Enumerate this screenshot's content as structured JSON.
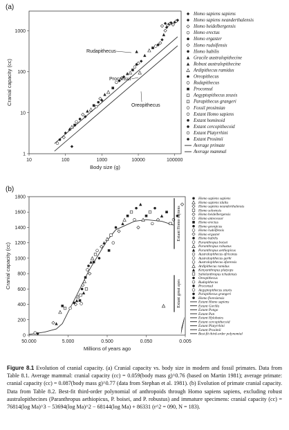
{
  "chart_data": [
    {
      "type": "scatter",
      "panel": "(a)",
      "xlabel": "Body size (g)",
      "ylabel": "Cranial capacity (cc)",
      "x_scale": "log",
      "y_scale": "log",
      "xlim": [
        10,
        150000
      ],
      "ylim": [
        1,
        3000
      ],
      "xticks": [
        10,
        100,
        1000,
        10000,
        100000
      ],
      "xtick_labels": [
        "10",
        "100",
        "1000",
        "10000",
        "100000"
      ],
      "yticks": [
        1,
        10,
        100,
        1000
      ],
      "ytick_labels": [
        "1",
        "10",
        "100",
        "1000"
      ],
      "annotations": [
        "Rudapithecus",
        "Proconsul",
        "Oreopithecus"
      ],
      "legend_position": "right",
      "legend": [
        "Homo sapiens sapiens",
        "Homo sapiens neanderthalensis",
        "Homo heidelbergensis",
        "Homo erectus",
        "Homo ergaster",
        "Homo rudolfensis",
        "Homo habilis",
        "Gracile australopithecine",
        "Robust australopithecine",
        "Ardipithecus ramidus",
        "Oreopithecus",
        "Rudapithecus",
        "Proconsul",
        "Aegyptopithecus zeuxis",
        "Parapithecus grangeri",
        "Fossil prosimian",
        "Extant Homo sapiens",
        "Extant hominoid",
        "Extant cercopithecoid",
        "Extant Platyrrhini",
        "Extant Prosimii",
        "Average primate",
        "Average mammal"
      ],
      "lines": [
        {
          "name": "Average primate",
          "formula": "cc = 0.087 * g^0.77",
          "x": [
            50,
            120000
          ]
        },
        {
          "name": "Average mammal",
          "formula": "cc = 0.059 * g^0.76",
          "x": [
            50,
            120000
          ]
        }
      ],
      "points": [
        [
          60,
          1.8
        ],
        [
          70,
          2.2
        ],
        [
          90,
          2.5
        ],
        [
          100,
          3.2
        ],
        [
          130,
          4
        ],
        [
          150,
          4.5
        ],
        [
          180,
          5
        ],
        [
          200,
          6
        ],
        [
          250,
          7
        ],
        [
          300,
          9
        ],
        [
          350,
          8
        ],
        [
          400,
          11
        ],
        [
          500,
          12
        ],
        [
          600,
          15
        ],
        [
          700,
          14
        ],
        [
          800,
          18
        ],
        [
          900,
          22
        ],
        [
          1000,
          20
        ],
        [
          1200,
          28
        ],
        [
          1500,
          32
        ],
        [
          2000,
          40
        ],
        [
          2500,
          55
        ],
        [
          3000,
          60
        ],
        [
          3500,
          70
        ],
        [
          4000,
          75
        ],
        [
          5000,
          90
        ],
        [
          6000,
          95
        ],
        [
          7000,
          110
        ],
        [
          8000,
          130
        ],
        [
          9000,
          150
        ],
        [
          10000,
          160
        ],
        [
          12000,
          180
        ],
        [
          15000,
          250
        ],
        [
          20000,
          330
        ],
        [
          25000,
          380
        ],
        [
          30000,
          420
        ],
        [
          35000,
          450
        ],
        [
          40000,
          500
        ],
        [
          45000,
          600
        ],
        [
          50000,
          800
        ],
        [
          55000,
          1000
        ],
        [
          60000,
          1200
        ],
        [
          65000,
          1350
        ],
        [
          70000,
          1450
        ],
        [
          75000,
          1500
        ],
        [
          80000,
          1550
        ],
        [
          90000,
          1400
        ],
        [
          100000,
          1600
        ],
        [
          110000,
          1700
        ],
        [
          120000,
          1800
        ],
        [
          45000,
          1300
        ],
        [
          55000,
          1500
        ],
        [
          150,
          1.5
        ],
        [
          9000,
          310
        ],
        [
          11000,
          95
        ]
      ]
    },
    {
      "type": "scatter",
      "panel": "(b)",
      "xlabel": "Millions of years ago",
      "ylabel": "Cranial capacity (cc)",
      "x_scale": "log-reversed",
      "xlim": [
        50,
        0.005
      ],
      "ylim": [
        0,
        1800
      ],
      "xticks": [
        50,
        5,
        0.5,
        0.05,
        0.005
      ],
      "xtick_labels": [
        "50.000",
        "5.000",
        "0.500",
        "0.050",
        "0.005"
      ],
      "yticks": [
        0,
        200,
        400,
        600,
        800,
        1000,
        1200,
        1400,
        1600,
        1800
      ],
      "ytick_labels": [
        "0",
        "200",
        "400",
        "600",
        "800",
        "1000",
        "1200",
        "1400",
        "1600",
        "1800"
      ],
      "vertical_labels": [
        "Extant Homo sapiens",
        "Extant great apes"
      ],
      "legend_position": "right",
      "legend": [
        "Homo sapiens sapiens",
        "Homo sapiens idaltu",
        "Homo sapiens neanderthalensis",
        "Homo soloensis",
        "Homo heidelbergensis",
        "Homo antecessor",
        "Homo erectus",
        "Homo georgicus",
        "Homo rudolfensis",
        "Homo ergaster",
        "Homo habilis",
        "Paranthropus boisei",
        "Paranthropus robustus",
        "Paranthropus aethiopicus",
        "Australopithecus africanus",
        "Australopithecus garhi",
        "Australopithecus afarensis",
        "Ardipithecus ramidus",
        "Kenyanthropus platyops",
        "Sahelanthropus tchadensis",
        "Oreopithecus",
        "Rudapithecus",
        "Proconsul",
        "Aegyptopithecus zeuxis",
        "Parapithecus grangeri",
        "Homo floresiensis",
        "Extant Homo sapiens",
        "Extant Gorilla",
        "Extant Pongo",
        "Extant Pan",
        "Extant Hylobates",
        "Extant cercopithecoid",
        "Extant Platyrrhini",
        "Extant Prosimii",
        "Best-fit third-order polynomial"
      ],
      "points": [
        [
          35,
          30
        ],
        [
          30,
          20
        ],
        [
          12,
          160
        ],
        [
          10,
          150
        ],
        [
          8,
          300
        ],
        [
          7,
          380
        ],
        [
          6,
          350
        ],
        [
          4.4,
          350
        ],
        [
          3.5,
          420
        ],
        [
          3.2,
          400
        ],
        [
          3.0,
          450
        ],
        [
          2.8,
          500
        ],
        [
          2.5,
          450
        ],
        [
          2.4,
          520
        ],
        [
          2.3,
          410
        ],
        [
          2.2,
          600
        ],
        [
          2.1,
          650
        ],
        [
          2.0,
          550
        ],
        [
          1.9,
          700
        ],
        [
          1.8,
          750
        ],
        [
          1.7,
          600
        ],
        [
          1.6,
          850
        ],
        [
          1.5,
          900
        ],
        [
          1.4,
          800
        ],
        [
          1.3,
          950
        ],
        [
          1.2,
          1000
        ],
        [
          1.1,
          950
        ],
        [
          1.0,
          1050
        ],
        [
          0.9,
          1100
        ],
        [
          0.8,
          1000
        ],
        [
          0.7,
          1150
        ],
        [
          0.6,
          1200
        ],
        [
          0.5,
          1250
        ],
        [
          0.45,
          1100
        ],
        [
          0.4,
          1300
        ],
        [
          0.35,
          1200
        ],
        [
          0.3,
          1400
        ],
        [
          0.25,
          1350
        ],
        [
          0.2,
          1450
        ],
        [
          0.18,
          1500
        ],
        [
          0.15,
          1550
        ],
        [
          0.12,
          1600
        ],
        [
          0.1,
          1500
        ],
        [
          0.09,
          1650
        ],
        [
          0.08,
          1400
        ],
        [
          0.07,
          1700
        ],
        [
          0.06,
          1500
        ],
        [
          0.05,
          1550
        ],
        [
          0.04,
          1600
        ],
        [
          0.035,
          1450
        ],
        [
          0.03,
          1650
        ],
        [
          0.025,
          1500
        ],
        [
          0.02,
          1550
        ],
        [
          0.018,
          380
        ],
        [
          0.015,
          1600
        ],
        [
          0.012,
          1450
        ],
        [
          0.01,
          1500
        ],
        [
          0.008,
          1550
        ],
        [
          0.006,
          1700
        ]
      ],
      "fit": [
        [
          50,
          10
        ],
        [
          20,
          40
        ],
        [
          10,
          80
        ],
        [
          7,
          150
        ],
        [
          5,
          300
        ],
        [
          3,
          520
        ],
        [
          2,
          700
        ],
        [
          1.5,
          830
        ],
        [
          1,
          980
        ],
        [
          0.5,
          1230
        ],
        [
          0.3,
          1370
        ],
        [
          0.1,
          1480
        ],
        [
          0.05,
          1500
        ],
        [
          0.02,
          1480
        ],
        [
          0.01,
          1430
        ]
      ]
    }
  ],
  "panel_a_label": "(a)",
  "panel_b_label": "(b)",
  "caption": {
    "title": "Figure 8.1",
    "text": "Evolution of cranial capacity. (a) Cranial capacity vs. body size in modern and fossil primates. Data from Table 8.1. Average mammal: cranial capacity (cc) = 0.059(body mass g)^0.76 (based on Martin 1981); average primate: cranial capacity (cc) = 0.087(body mass g)^0.77 (data from Stephan et al. 1981). (b) Evolution of primate cranial capacity. Data from Table 8.2. Best-fit third-order polynomial of anthropoids through Homo sapiens sapiens, excluding robust australopithecines (Paranthropus aethiopicus, P. boisei, and P. robustus) and immature specimens: cranial capacity (cc) = 76814(log Ma)^3 − 53694(log Ma)^2 − 68144(log Ma) + 86331 (r^2 = 090, N = 183)."
  }
}
